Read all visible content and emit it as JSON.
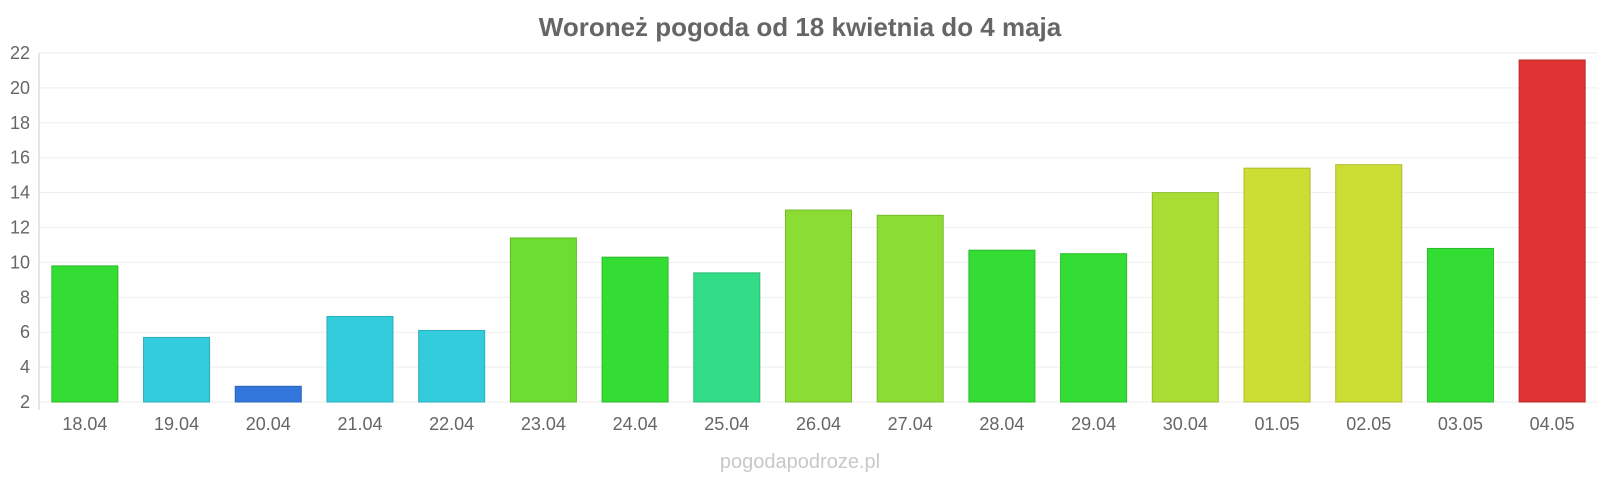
{
  "chart_data": {
    "type": "bar",
    "title": "Woroneż pogoda od 18 kwietnia do 4 maja",
    "xlabel": "",
    "ylabel": "",
    "categories": [
      "18.04",
      "19.04",
      "20.04",
      "21.04",
      "22.04",
      "23.04",
      "24.04",
      "25.04",
      "26.04",
      "27.04",
      "28.04",
      "29.04",
      "30.04",
      "01.05",
      "02.05",
      "03.05",
      "04.05"
    ],
    "values": [
      9.8,
      5.7,
      2.9,
      6.9,
      6.1,
      11.4,
      10.3,
      9.4,
      13.0,
      12.7,
      10.7,
      10.5,
      14.0,
      15.4,
      15.6,
      10.8,
      21.6
    ],
    "colors": [
      "#33dd33",
      "#33ccdd",
      "#3377dd",
      "#33ccdd",
      "#33ccdd",
      "#6edd33",
      "#33dd33",
      "#33dd88",
      "#8bdd33",
      "#8bdd33",
      "#33dd33",
      "#33dd33",
      "#aadd33",
      "#ccdd33",
      "#ccdd33",
      "#33dd33",
      "#dd3333"
    ],
    "yticks": [
      2,
      4,
      6,
      8,
      10,
      12,
      14,
      16,
      18,
      20,
      22
    ],
    "ylim": [
      2,
      22
    ],
    "grid": true,
    "legend": "none"
  },
  "watermark": "pogodapodroze.pl"
}
